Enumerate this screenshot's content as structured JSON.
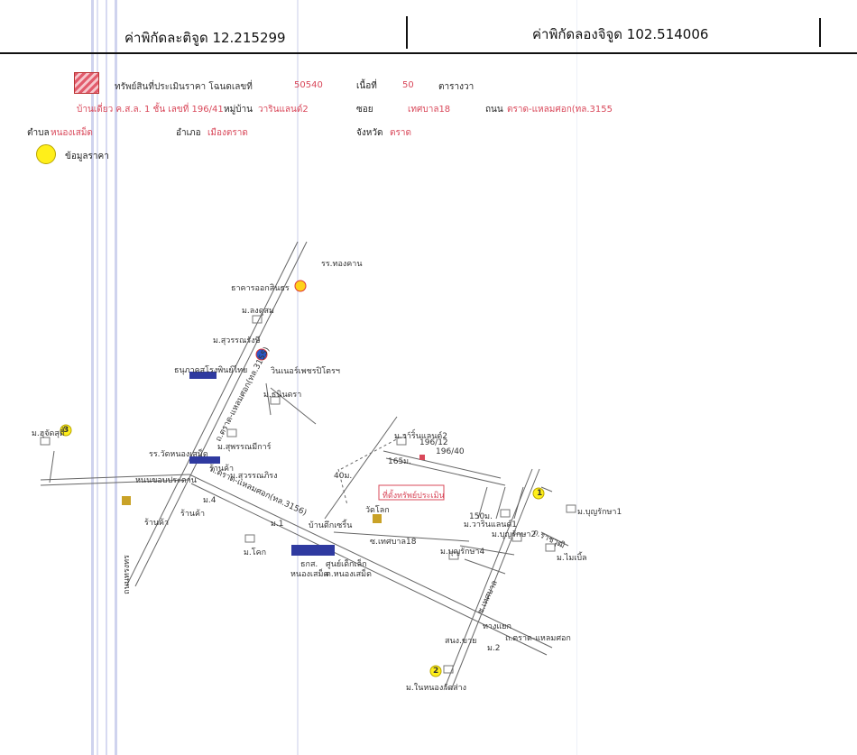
{
  "header": {
    "lat_label": "ค่าพิกัดละติจูด 12.215299",
    "lon_label": "ค่าพิกัดลองจิจูด 102.514006"
  },
  "info": {
    "property_label": "ทรัพย์สินที่ประเมินราคา โฉนดเลขที่",
    "deed_no": "50540",
    "area_label": "เนื้อที่",
    "area_value": "50",
    "area_unit": "ตารางวา",
    "address_line": "บ้านเดี่ยว ค.ส.ล. 1 ชั้น เลขที่ 196/41",
    "village_label": "หมู่บ้าน",
    "village_value": "วารินแลนด์2",
    "soi_label": "ซอย",
    "soi_value": "เทศบาล18",
    "road_label": "ถนน",
    "road_value": "ตราด-แหลมศอก(ทล.3155",
    "tambon_label": "ตำบล",
    "tambon_value": "หนองเสม็ด",
    "amphoe_label": "อำเภอ",
    "amphoe_value": "เมืองตราด",
    "province_label": "จังหวัด",
    "province_value": "ตราด"
  },
  "legend": {
    "price_data_label": "ข้อมูลราคา"
  },
  "map": {
    "labels": {
      "school_top": "รร.ทองคาน",
      "bank": "ธาคารออกสินธร",
      "village_a": "ม.ลงดูสม",
      "village_b": "ม.สุวรรณรังษี",
      "gas": "วินเนอร์เพชรปิโตรฯ",
      "hospital": "ธนุภาคสโรงพินย์ไทย",
      "village_c": "ม.ธนินดรา",
      "village_d": "ม.สุพรรณมีการ์",
      "school_b": "รร.วัดหนองเสม็ด",
      "village_e": "ม.สุวรรณภิรง",
      "village_left": "ม.ฮุจัดสุตี้",
      "road_ban": "หนนขอบประดาน",
      "road_main": "ถ.ตราด-แหลมศอก(ทล.3156)",
      "road_vert": "ถ.ตราด-แหลมศอก(ทล.3155)",
      "shop1": "ร้านค้า",
      "shop2": "ร้านค้า",
      "shop3": "ร้านค้า",
      "m4": "ม.4",
      "m1": "ม.1",
      "village_f": "ม.โคก",
      "village_g": "ม.วารินแลนด์2",
      "lot_num": "196/12",
      "lot_num2": "196/40",
      "m165": "165ม.",
      "m40": "40ม.",
      "target": "ที่ตั้งทรัพย์ประเมิน",
      "wat": "วัดโลก",
      "market": "บ้านตึกเซริ้น",
      "soi18": "ซ.เทศบาล18",
      "bank2": "ธกส.",
      "office": "ศูนย์เด็กเล็ก",
      "office2": "ต.หนองเสม็ด",
      "hnong": "หนองเสม็ด",
      "village_h": "ม.วารินแลนด์1",
      "m150": "150ม.",
      "village_i": "ม.บุญรักษา2",
      "village_j": "ม.บุญรักษา4",
      "village_k": "ม.บุญรักษา1",
      "village_l": "ม.ไมเบิ้ล",
      "road_diag": "ถ.ราชวุฒิ",
      "soi_right": "ซ.เทศบาล",
      "rd_bottom": "ถ.ตราด-แหลมศอก",
      "junction": "ทางแยก",
      "town": "สนง.ขาย",
      "m2": "ม.2",
      "village_m": "ม.ในหนองวัดส่าง",
      "bottom_left_road": "ถนนทรงทร",
      "marker1": "1",
      "marker2": "2",
      "marker3": "3"
    }
  }
}
